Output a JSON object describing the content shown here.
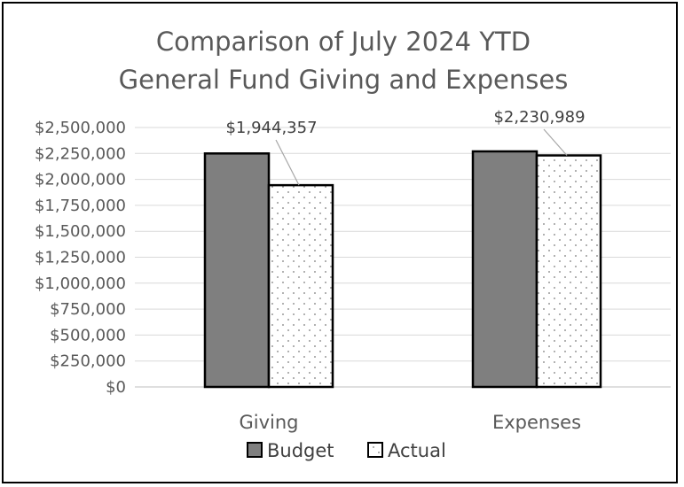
{
  "chart_data": {
    "type": "bar",
    "title_lines": [
      "Comparison of July 2024 YTD",
      "General Fund Giving and Expenses"
    ],
    "xlabel": "",
    "ylabel": "",
    "categories": [
      "Giving",
      "Expenses"
    ],
    "series": [
      {
        "name": "Budget",
        "values": [
          2250000,
          2270000
        ],
        "color": "#7f7f7f"
      },
      {
        "name": "Actual",
        "values": [
          1944357,
          2230989
        ],
        "color": "#ffffff"
      }
    ],
    "data_labels": [
      {
        "category": "Giving",
        "series": "Actual",
        "text": "$1,944,357"
      },
      {
        "category": "Expenses",
        "series": "Actual",
        "text": "$2,230,989"
      }
    ],
    "ylim": [
      0,
      2500000
    ],
    "yticks": [
      0,
      250000,
      500000,
      750000,
      1000000,
      1250000,
      1500000,
      1750000,
      2000000,
      2250000,
      2500000
    ],
    "ytick_labels": [
      "$0",
      "$250,000",
      "$500,000",
      "$750,000",
      "$1,000,000",
      "$1,250,000",
      "$1,500,000",
      "$1,750,000",
      "$2,000,000",
      "$2,250,000",
      "$2,500,000"
    ],
    "grid": true,
    "legend_position": "bottom",
    "gridline_color": "#d9d9d9"
  }
}
